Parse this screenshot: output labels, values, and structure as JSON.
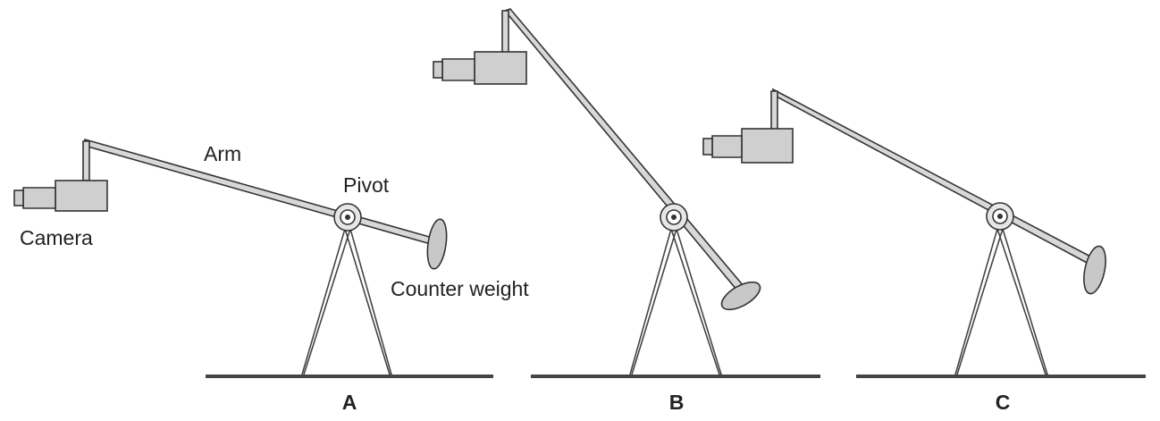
{
  "labels": {
    "camera": "Camera",
    "arm": "Arm",
    "pivot": "Pivot",
    "counter_weight": "Counter weight"
  },
  "panels": [
    {
      "id": "A",
      "label": "A"
    },
    {
      "id": "B",
      "label": "B"
    },
    {
      "id": "C",
      "label": "C"
    }
  ],
  "colors": {
    "line": "#333333",
    "fill": "#cfcfcf",
    "ground": "#444444",
    "text": "#222222"
  }
}
